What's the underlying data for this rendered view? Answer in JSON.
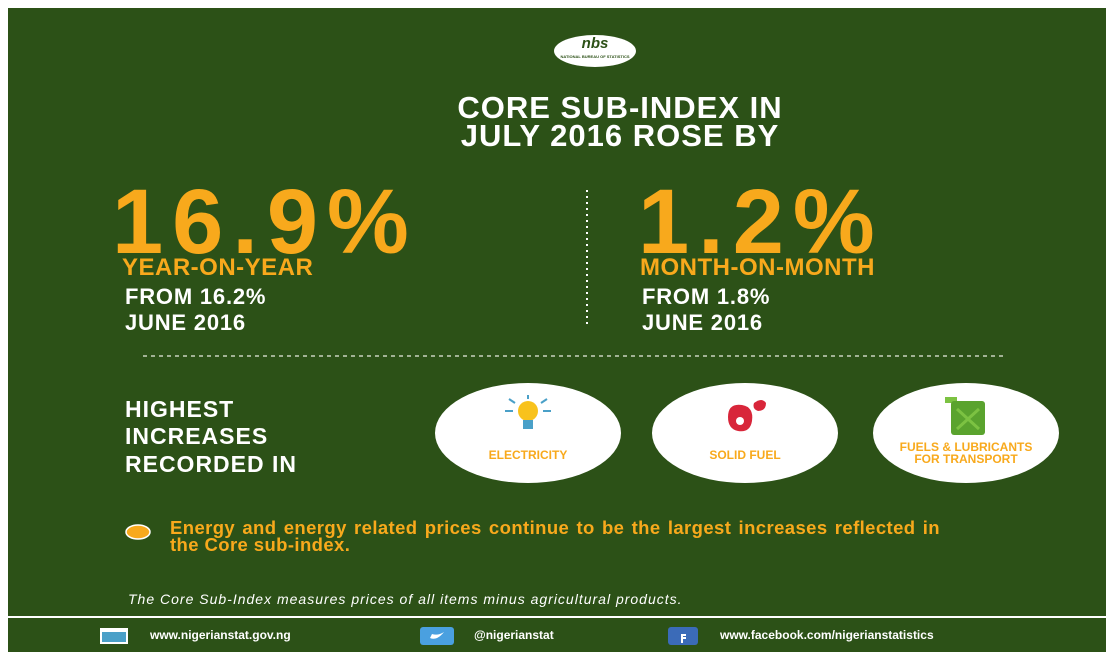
{
  "header": {
    "logo_text": "nbs",
    "logo_caption": "NATIONAL BUREAU OF STATISTICS",
    "title_lines": [
      "CORE SUB-INDEX IN",
      "JULY 2016 ROSE BY"
    ]
  },
  "stats": [
    {
      "value": "16.9%",
      "label": "YEAR-ON-YEAR",
      "from_lines": [
        "FROM 16.2%",
        "JUNE 2016"
      ]
    },
    {
      "value": "1.2%",
      "label": "MONTH-ON-MONTH",
      "from_lines": [
        "FROM 1.8%",
        "JUNE 2016"
      ]
    }
  ],
  "increases": {
    "heading_lines": [
      "HIGHEST",
      "INCREASES",
      "RECORDED IN"
    ],
    "items": [
      "ELECTRICITY",
      "SOLID FUEL",
      "FUELS & LUBRICANTS FOR TRANSPORT"
    ]
  },
  "bullet": "Energy and energy related prices continue to be the largest increases reflected in the Core sub-index.",
  "note": "The Core Sub-Index measures prices of all items minus agricultural products.",
  "footer": {
    "website": "www.nigerianstat.gov.ng",
    "twitter": "@nigerianstat",
    "facebook": "www.facebook.com/nigerianstatistics"
  }
}
